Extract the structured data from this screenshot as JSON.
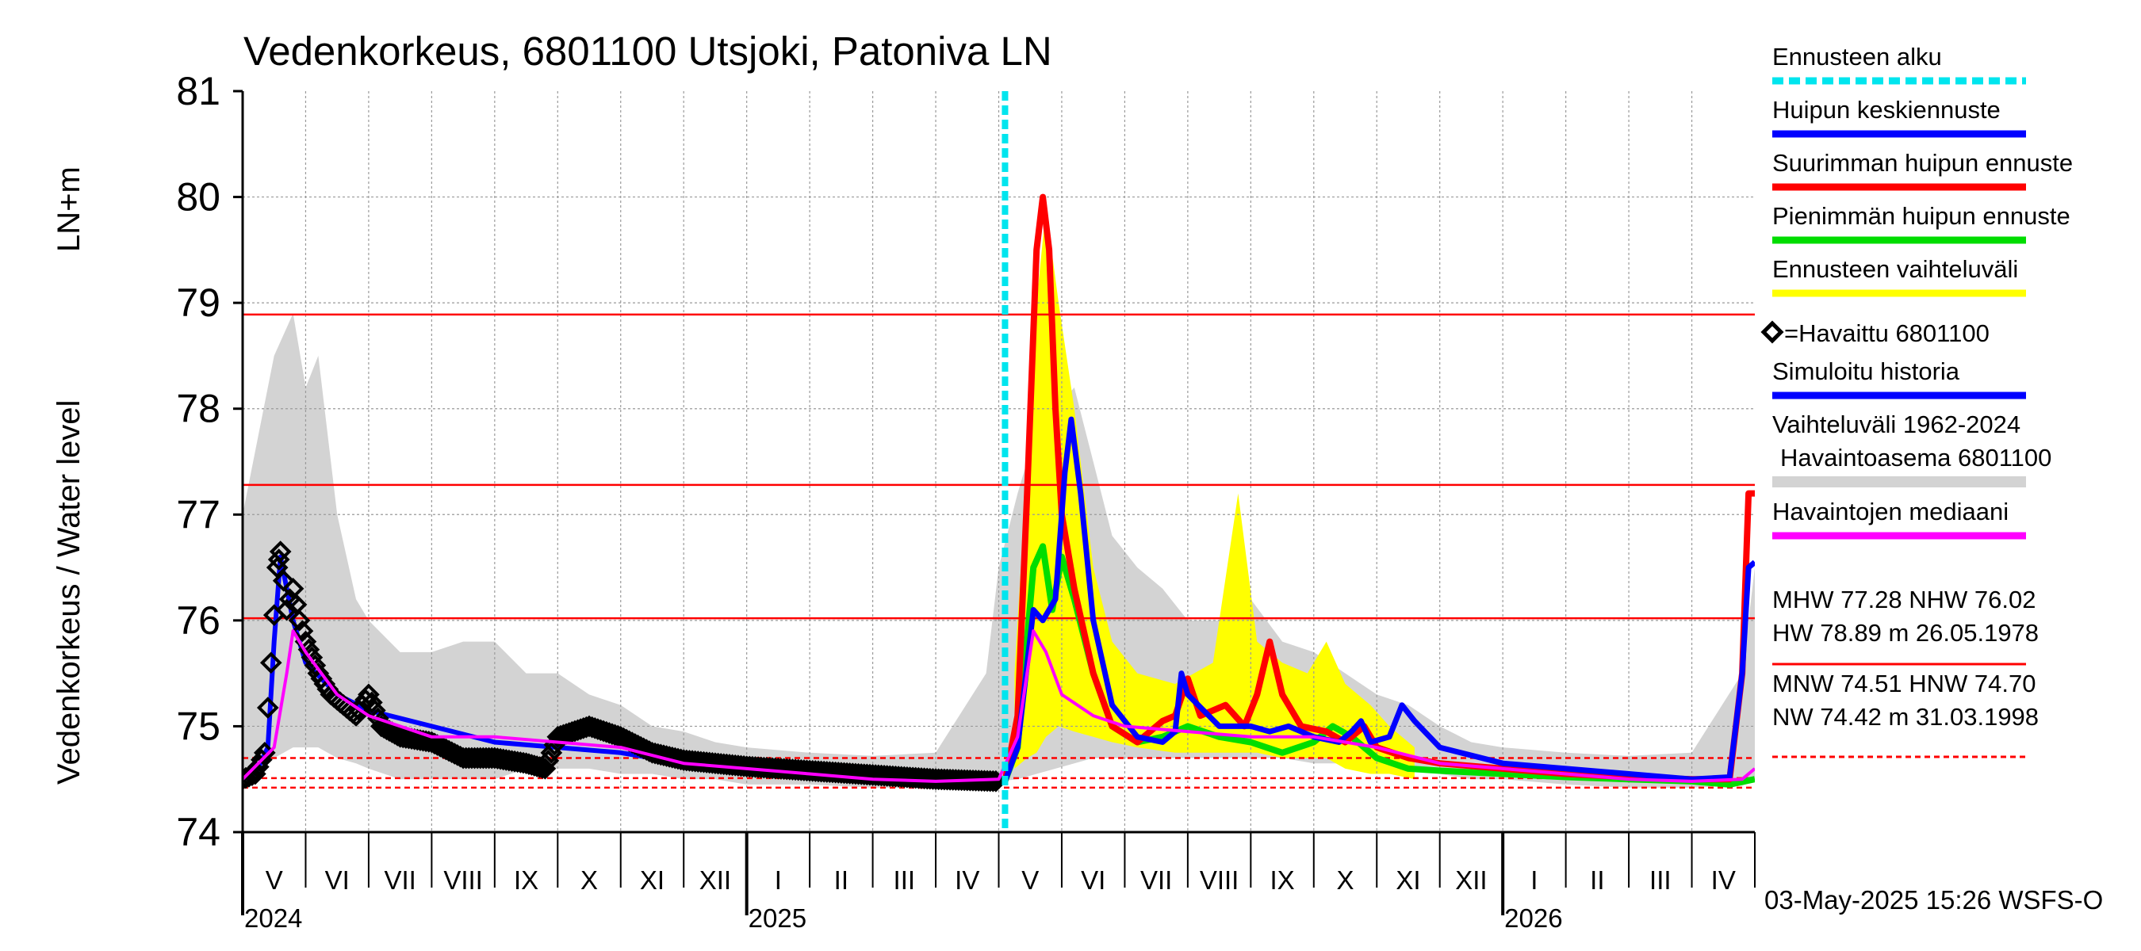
{
  "colors": {
    "forecast_start": "#00e5ee",
    "mean_peak": "#0000ff",
    "max_peak": "#ff0000",
    "min_peak": "#00dd00",
    "range": "#ffff00",
    "observed": "#000000",
    "simulated": "#0000ff",
    "hist_range": "#d3d3d3",
    "median": "#ff00ff",
    "ref_line": "#ff0000"
  },
  "chart_data": {
    "type": "line",
    "title": "Vedenkorkeus, 6801100 Utsjoki, Patoniva LN",
    "ylabel_main": "Vedenkorkeus / Water level",
    "ylabel_unit": "LN+m",
    "ylim": [
      74,
      81
    ],
    "yticks": [
      "74",
      "75",
      "76",
      "77",
      "78",
      "79",
      "80",
      "81"
    ],
    "x_range_months": [
      0,
      24
    ],
    "months": [
      "V",
      "VI",
      "VII",
      "VIII",
      "IX",
      "X",
      "XI",
      "XII",
      "I",
      "II",
      "III",
      "IV",
      "V",
      "VI",
      "VII",
      "VIII",
      "IX",
      "X",
      "XI",
      "XII",
      "I",
      "II",
      "III",
      "IV"
    ],
    "years": [
      {
        "label": "2024",
        "month_index": 0
      },
      {
        "label": "2025",
        "month_index": 8
      },
      {
        "label": "2026",
        "month_index": 20
      }
    ],
    "forecast_start_month": 12.1,
    "reference_lines": [
      {
        "name": "HW",
        "value": 78.89,
        "style": "solid"
      },
      {
        "name": "MHW",
        "value": 77.28,
        "style": "solid"
      },
      {
        "name": "NHW",
        "value": 76.02,
        "style": "solid"
      },
      {
        "name": "HNW",
        "value": 74.7,
        "style": "dashed"
      },
      {
        "name": "MNW",
        "value": 74.51,
        "style": "dashed"
      },
      {
        "name": "NW",
        "value": 74.42,
        "style": "dashed"
      }
    ],
    "series": {
      "hist_band": [
        [
          0,
          74.45,
          77.0
        ],
        [
          0.3,
          74.6,
          77.9
        ],
        [
          0.5,
          74.7,
          78.5
        ],
        [
          0.8,
          74.8,
          78.9
        ],
        [
          1.0,
          74.8,
          78.2
        ],
        [
          1.2,
          74.8,
          78.5
        ],
        [
          1.5,
          74.7,
          77.0
        ],
        [
          1.8,
          74.65,
          76.2
        ],
        [
          2.0,
          74.6,
          76.0
        ],
        [
          2.5,
          74.5,
          75.7
        ],
        [
          3.0,
          74.5,
          75.7
        ],
        [
          3.5,
          74.5,
          75.8
        ],
        [
          4.0,
          74.5,
          75.8
        ],
        [
          4.5,
          74.6,
          75.5
        ],
        [
          5.0,
          74.6,
          75.5
        ],
        [
          5.5,
          74.6,
          75.3
        ],
        [
          6.0,
          74.55,
          75.2
        ],
        [
          6.5,
          74.55,
          75.0
        ],
        [
          7.0,
          74.5,
          74.95
        ],
        [
          7.5,
          74.5,
          74.85
        ],
        [
          8.0,
          74.45,
          74.8
        ],
        [
          9.0,
          74.45,
          74.75
        ],
        [
          10.0,
          74.42,
          74.72
        ],
        [
          11.0,
          74.42,
          74.75
        ],
        [
          11.8,
          74.44,
          75.5
        ],
        [
          12.0,
          74.48,
          76.5
        ],
        [
          12.3,
          74.5,
          77.2
        ],
        [
          12.6,
          74.55,
          77.8
        ],
        [
          12.9,
          74.6,
          78.0
        ],
        [
          13.2,
          74.65,
          78.2
        ],
        [
          13.5,
          74.7,
          77.5
        ],
        [
          13.8,
          74.7,
          76.8
        ],
        [
          14.2,
          74.7,
          76.5
        ],
        [
          14.6,
          74.7,
          76.3
        ],
        [
          15.0,
          74.7,
          76.0
        ],
        [
          15.5,
          74.7,
          76.0
        ],
        [
          16.0,
          74.7,
          76.2
        ],
        [
          16.5,
          74.7,
          75.8
        ],
        [
          17.0,
          74.65,
          75.7
        ],
        [
          17.5,
          74.65,
          75.5
        ],
        [
          18.0,
          74.6,
          75.3
        ],
        [
          18.5,
          74.6,
          75.2
        ],
        [
          19.0,
          74.55,
          75.0
        ],
        [
          19.5,
          74.5,
          74.85
        ],
        [
          20.0,
          74.5,
          74.8
        ],
        [
          21.0,
          74.45,
          74.75
        ],
        [
          22.0,
          74.42,
          74.72
        ],
        [
          23.0,
          74.42,
          74.75
        ],
        [
          23.8,
          74.44,
          75.5
        ],
        [
          24.0,
          74.48,
          76.5
        ]
      ],
      "forecast_range": [
        [
          12.25,
          74.6,
          75.5
        ],
        [
          12.45,
          74.7,
          77.5
        ],
        [
          12.6,
          74.75,
          79.0
        ],
        [
          12.75,
          74.9,
          79.9
        ],
        [
          12.95,
          75.0,
          79.0
        ],
        [
          13.2,
          74.95,
          78.0
        ],
        [
          13.5,
          74.9,
          76.5
        ],
        [
          13.8,
          74.85,
          75.8
        ],
        [
          14.2,
          74.8,
          75.5
        ],
        [
          14.8,
          74.75,
          75.4
        ],
        [
          15.4,
          74.75,
          75.6
        ],
        [
          15.8,
          74.75,
          77.2
        ],
        [
          16.1,
          74.75,
          75.8
        ],
        [
          16.5,
          74.7,
          75.6
        ],
        [
          16.9,
          74.7,
          75.5
        ],
        [
          17.2,
          74.7,
          75.8
        ],
        [
          17.5,
          74.6,
          75.4
        ],
        [
          17.9,
          74.55,
          75.2
        ],
        [
          18.2,
          74.55,
          75.0
        ],
        [
          18.6,
          74.5,
          74.8
        ]
      ],
      "observed": [
        [
          0,
          74.5
        ],
        [
          0.2,
          74.55
        ],
        [
          0.35,
          74.75
        ],
        [
          0.45,
          75.6
        ],
        [
          0.55,
          76.5
        ],
        [
          0.6,
          76.65
        ],
        [
          0.7,
          76.1
        ],
        [
          0.8,
          76.3
        ],
        [
          0.9,
          76.0
        ],
        [
          1.0,
          75.8
        ],
        [
          1.2,
          75.5
        ],
        [
          1.4,
          75.3
        ],
        [
          1.6,
          75.2
        ],
        [
          1.8,
          75.1
        ],
        [
          2.0,
          75.3
        ],
        [
          2.2,
          75.0
        ],
        [
          2.5,
          74.9
        ],
        [
          3.0,
          74.85
        ],
        [
          3.5,
          74.7
        ],
        [
          4.0,
          74.7
        ],
        [
          4.5,
          74.65
        ],
        [
          4.8,
          74.6
        ],
        [
          5.0,
          74.9
        ],
        [
          5.5,
          75.0
        ],
        [
          6.0,
          74.9
        ],
        [
          6.5,
          74.75
        ],
        [
          7.0,
          74.68
        ],
        [
          8.0,
          74.62
        ],
        [
          9.0,
          74.58
        ],
        [
          10.0,
          74.54
        ],
        [
          11.0,
          74.5
        ],
        [
          12.0,
          74.48
        ]
      ],
      "median": [
        [
          0,
          74.5
        ],
        [
          0.5,
          74.8
        ],
        [
          0.7,
          75.5
        ],
        [
          0.8,
          75.9
        ],
        [
          1.0,
          75.7
        ],
        [
          1.5,
          75.3
        ],
        [
          2.0,
          75.1
        ],
        [
          2.5,
          75.0
        ],
        [
          3.0,
          74.9
        ],
        [
          4.0,
          74.9
        ],
        [
          5.0,
          74.85
        ],
        [
          6.0,
          74.8
        ],
        [
          7.0,
          74.65
        ],
        [
          8.0,
          74.6
        ],
        [
          9.0,
          74.55
        ],
        [
          10.0,
          74.5
        ],
        [
          11.0,
          74.48
        ],
        [
          12.0,
          74.5
        ],
        [
          12.3,
          74.9
        ],
        [
          12.55,
          75.9
        ],
        [
          12.75,
          75.7
        ],
        [
          13.0,
          75.3
        ],
        [
          13.5,
          75.1
        ],
        [
          14.0,
          75.0
        ],
        [
          15.0,
          74.95
        ],
        [
          16.0,
          74.9
        ],
        [
          17.0,
          74.9
        ],
        [
          18.0,
          74.8
        ],
        [
          19.0,
          74.65
        ],
        [
          20.0,
          74.6
        ],
        [
          21.0,
          74.55
        ],
        [
          22.0,
          74.5
        ],
        [
          23.0,
          74.48
        ],
        [
          23.8,
          74.5
        ],
        [
          24.0,
          74.6
        ]
      ],
      "simulated": [
        [
          0,
          74.5
        ],
        [
          0.2,
          74.55
        ],
        [
          0.4,
          74.8
        ],
        [
          0.5,
          75.8
        ],
        [
          0.6,
          76.6
        ],
        [
          0.8,
          76.0
        ],
        [
          1.0,
          75.6
        ],
        [
          1.5,
          75.3
        ],
        [
          2.0,
          75.15
        ],
        [
          3.0,
          75.0
        ],
        [
          4.0,
          74.85
        ],
        [
          5.0,
          74.8
        ],
        [
          6.0,
          74.75
        ],
        [
          7.0,
          74.65
        ],
        [
          8.0,
          74.6
        ],
        [
          9.0,
          74.55
        ],
        [
          10.0,
          74.5
        ],
        [
          11.0,
          74.48
        ],
        [
          12.0,
          74.48
        ]
      ],
      "mean_peak": [
        [
          12.1,
          74.48
        ],
        [
          12.3,
          74.8
        ],
        [
          12.55,
          76.1
        ],
        [
          12.7,
          76.0
        ],
        [
          12.9,
          76.2
        ],
        [
          13.05,
          77.4
        ],
        [
          13.15,
          77.9
        ],
        [
          13.3,
          77.2
        ],
        [
          13.5,
          76.0
        ],
        [
          13.8,
          75.2
        ],
        [
          14.2,
          74.9
        ],
        [
          14.6,
          74.85
        ],
        [
          14.8,
          74.95
        ],
        [
          14.9,
          75.5
        ],
        [
          15.0,
          75.3
        ],
        [
          15.5,
          75.0
        ],
        [
          16.0,
          75.0
        ],
        [
          16.3,
          74.95
        ],
        [
          16.6,
          75.0
        ],
        [
          17.0,
          74.9
        ],
        [
          17.4,
          74.85
        ],
        [
          17.6,
          74.95
        ],
        [
          17.75,
          75.05
        ],
        [
          17.9,
          74.85
        ],
        [
          18.2,
          74.9
        ],
        [
          18.4,
          75.2
        ],
        [
          18.6,
          75.05
        ],
        [
          19.0,
          74.8
        ],
        [
          20.0,
          74.65
        ],
        [
          21.0,
          74.6
        ],
        [
          22.0,
          74.55
        ],
        [
          23.0,
          74.5
        ],
        [
          23.6,
          74.52
        ],
        [
          23.8,
          75.5
        ],
        [
          23.9,
          76.5
        ],
        [
          24.0,
          76.55
        ]
      ],
      "max_peak": [
        [
          12.1,
          74.48
        ],
        [
          12.3,
          75.1
        ],
        [
          12.45,
          77.2
        ],
        [
          12.6,
          79.5
        ],
        [
          12.7,
          80.0
        ],
        [
          12.8,
          79.5
        ],
        [
          12.9,
          78.0
        ],
        [
          13.0,
          77.0
        ],
        [
          13.2,
          76.3
        ],
        [
          13.5,
          75.5
        ],
        [
          13.8,
          75.0
        ],
        [
          14.2,
          74.85
        ],
        [
          14.6,
          75.05
        ],
        [
          14.8,
          75.1
        ],
        [
          15.0,
          75.45
        ],
        [
          15.2,
          75.1
        ],
        [
          15.6,
          75.2
        ],
        [
          15.9,
          75.0
        ],
        [
          16.1,
          75.3
        ],
        [
          16.3,
          75.8
        ],
        [
          16.5,
          75.3
        ],
        [
          16.8,
          75.0
        ],
        [
          17.2,
          74.95
        ],
        [
          17.5,
          74.85
        ],
        [
          17.8,
          75.0
        ],
        [
          18.0,
          74.8
        ],
        [
          18.5,
          74.7
        ],
        [
          19.0,
          74.65
        ],
        [
          20.0,
          74.6
        ],
        [
          21.0,
          74.55
        ],
        [
          22.0,
          74.52
        ],
        [
          23.0,
          74.5
        ],
        [
          23.6,
          74.5
        ],
        [
          23.8,
          75.5
        ],
        [
          23.9,
          77.2
        ],
        [
          24.0,
          77.2
        ]
      ],
      "min_peak": [
        [
          12.1,
          74.48
        ],
        [
          12.3,
          74.8
        ],
        [
          12.55,
          76.5
        ],
        [
          12.7,
          76.7
        ],
        [
          12.85,
          76.1
        ],
        [
          13.0,
          76.6
        ],
        [
          13.2,
          76.2
        ],
        [
          13.5,
          75.5
        ],
        [
          13.8,
          75.0
        ],
        [
          14.2,
          74.85
        ],
        [
          14.6,
          74.9
        ],
        [
          15.0,
          75.0
        ],
        [
          15.5,
          74.9
        ],
        [
          16.0,
          74.85
        ],
        [
          16.5,
          74.75
        ],
        [
          17.0,
          74.85
        ],
        [
          17.3,
          75.0
        ],
        [
          17.6,
          74.9
        ],
        [
          18.0,
          74.7
        ],
        [
          18.5,
          74.6
        ],
        [
          19.0,
          74.58
        ],
        [
          20.0,
          74.55
        ],
        [
          21.0,
          74.52
        ],
        [
          22.0,
          74.5
        ],
        [
          23.0,
          74.48
        ],
        [
          23.6,
          74.45
        ],
        [
          24.0,
          74.5
        ]
      ]
    },
    "legend": [
      {
        "key": "forecast_start",
        "label": "Ennusteen alku"
      },
      {
        "key": "mean_peak",
        "label": "Huipun keskiennuste"
      },
      {
        "key": "max_peak",
        "label": "Suurimman huipun ennuste"
      },
      {
        "key": "min_peak",
        "label": "Pienimmän huipun ennuste"
      },
      {
        "key": "range",
        "label": "Ennusteen vaihteluväli"
      },
      {
        "key": "observed",
        "label": "=Havaittu 6801100"
      },
      {
        "key": "simulated",
        "label": "Simuloitu historia"
      },
      {
        "key": "hist_range",
        "label": "Vaihteluväli 1962-2024",
        "label2": "Havaintoasema 6801100"
      },
      {
        "key": "median",
        "label": "Havaintojen mediaani"
      }
    ],
    "stats": [
      "MHW  77.28 NHW  76.02",
      "HW  78.89 m 26.05.1978",
      "MNW  74.51 HNW  74.70",
      "NW  74.42 m 31.03.1998"
    ],
    "footer": "03-May-2025 15:26 WSFS-O"
  }
}
